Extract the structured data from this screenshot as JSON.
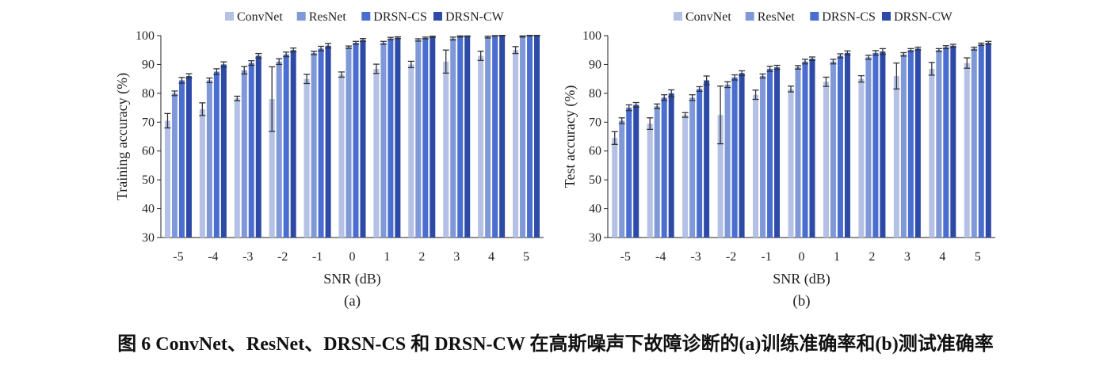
{
  "caption": "图 6 ConvNet、ResNet、DRSN-CS 和 DRSN-CW 在高斯噪声下故障诊断的(a)训练准确率和(b)测试准确率",
  "chart_data": [
    {
      "type": "bar",
      "panel_label": "(a)",
      "xlabel": "SNR (dB)",
      "ylabel": "Training accuracy (%)",
      "ylim": [
        30,
        100
      ],
      "yticks": [
        30,
        40,
        50,
        60,
        70,
        80,
        90,
        100
      ],
      "grid": false,
      "legend": "top",
      "categories": [
        "-5",
        "-4",
        "-3",
        "-2",
        "-1",
        "0",
        "1",
        "2",
        "3",
        "4",
        "5"
      ],
      "series": [
        {
          "name": "ConvNet",
          "color": "#b4c0e4",
          "values": [
            70.5,
            74.5,
            78.2,
            78.0,
            85.0,
            86.5,
            88.5,
            90.0,
            91.0,
            93.0,
            95.0
          ],
          "errors": [
            2.5,
            2.2,
            0.8,
            11.2,
            1.6,
            0.9,
            1.6,
            1.1,
            4.0,
            1.6,
            1.2
          ]
        },
        {
          "name": "ResNet",
          "color": "#7f98d8",
          "values": [
            80.0,
            84.5,
            88.0,
            91.0,
            94.0,
            96.0,
            97.5,
            98.5,
            99.0,
            99.5,
            99.7
          ],
          "errors": [
            0.8,
            0.8,
            1.3,
            1.0,
            0.6,
            0.4,
            0.5,
            0.4,
            0.5,
            0.3,
            0.2
          ]
        },
        {
          "name": "DRSN-CS",
          "color": "#4a6ed0",
          "values": [
            84.5,
            87.5,
            90.5,
            93.5,
            95.5,
            97.5,
            99.0,
            99.2,
            99.7,
            99.9,
            100.0
          ],
          "errors": [
            1.0,
            1.0,
            0.8,
            0.8,
            0.8,
            0.5,
            0.4,
            0.3,
            0.2,
            0.1,
            0.1
          ]
        },
        {
          "name": "DRSN-CW",
          "color": "#2d4aa6",
          "values": [
            86.0,
            90.0,
            93.0,
            95.0,
            96.5,
            98.5,
            99.3,
            99.6,
            99.8,
            100.0,
            100.0
          ],
          "errors": [
            0.8,
            0.9,
            0.8,
            0.7,
            0.8,
            0.5,
            0.3,
            0.2,
            0.1,
            0.1,
            0.1
          ]
        }
      ]
    },
    {
      "type": "bar",
      "panel_label": "(b)",
      "xlabel": "SNR (dB)",
      "ylabel": "Test accuracy (%)",
      "ylim": [
        30,
        100
      ],
      "yticks": [
        30,
        40,
        50,
        60,
        70,
        80,
        90,
        100
      ],
      "grid": false,
      "legend": "top",
      "categories": [
        "-5",
        "-4",
        "-3",
        "-2",
        "-1",
        "0",
        "1",
        "2",
        "3",
        "4",
        "5"
      ],
      "series": [
        {
          "name": "ConvNet",
          "color": "#b4c0e4",
          "values": [
            64.5,
            69.5,
            72.5,
            72.5,
            79.5,
            81.5,
            84.0,
            85.0,
            86.0,
            88.5,
            90.5
          ],
          "errors": [
            2.2,
            2.0,
            0.8,
            10.0,
            1.6,
            1.0,
            1.6,
            1.1,
            4.5,
            2.2,
            1.8
          ]
        },
        {
          "name": "ResNet",
          "color": "#7f98d8",
          "values": [
            70.5,
            75.5,
            78.5,
            83.0,
            86.0,
            89.0,
            91.0,
            92.5,
            93.5,
            95.0,
            95.5
          ],
          "errors": [
            1.0,
            0.8,
            1.0,
            1.0,
            0.7,
            0.6,
            0.8,
            0.7,
            0.6,
            0.5,
            0.5
          ]
        },
        {
          "name": "DRSN-CS",
          "color": "#4a6ed0",
          "values": [
            75.0,
            78.5,
            81.5,
            85.5,
            88.5,
            91.0,
            93.0,
            94.0,
            95.0,
            96.0,
            97.0
          ],
          "errors": [
            1.0,
            1.0,
            0.8,
            0.9,
            0.9,
            0.8,
            0.7,
            0.8,
            0.5,
            0.5,
            0.4
          ]
        },
        {
          "name": "DRSN-CW",
          "color": "#2d4aa6",
          "values": [
            76.0,
            80.0,
            84.5,
            87.0,
            89.0,
            92.0,
            94.0,
            94.5,
            95.5,
            96.5,
            97.5
          ],
          "errors": [
            0.8,
            1.2,
            1.5,
            0.8,
            0.7,
            0.6,
            0.7,
            1.0,
            0.5,
            0.5,
            0.5
          ]
        }
      ]
    }
  ]
}
